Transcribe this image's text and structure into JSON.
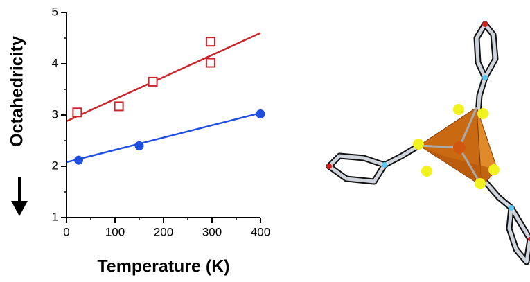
{
  "chart_data": {
    "type": "scatter",
    "x_label": "Temperature   (K)",
    "y_label": "Octahedricity",
    "xlim": [
      0,
      400
    ],
    "xticks": [
      0,
      100,
      200,
      300,
      400
    ],
    "ylim": [
      1,
      5
    ],
    "yticks": [
      1,
      2,
      3,
      4,
      5
    ],
    "series": [
      {
        "mode": "markers",
        "marker": "square",
        "color": "#c8262b",
        "x": [
          22,
          108,
          178,
          297,
          297
        ],
        "values": [
          3.05,
          3.17,
          3.65,
          4.43,
          4.02
        ]
      },
      {
        "mode": "line",
        "color": "#c8262b",
        "x": [
          0,
          400
        ],
        "values": [
          2.88,
          4.6
        ]
      },
      {
        "mode": "markers",
        "marker": "circle",
        "color": "#1f4fe0",
        "x": [
          25,
          150,
          400
        ],
        "values": [
          2.12,
          2.4,
          3.02
        ]
      },
      {
        "mode": "line",
        "color": "#1f4fe0",
        "x": [
          0,
          400
        ],
        "values": [
          2.08,
          3.04
        ]
      }
    ]
  }
}
